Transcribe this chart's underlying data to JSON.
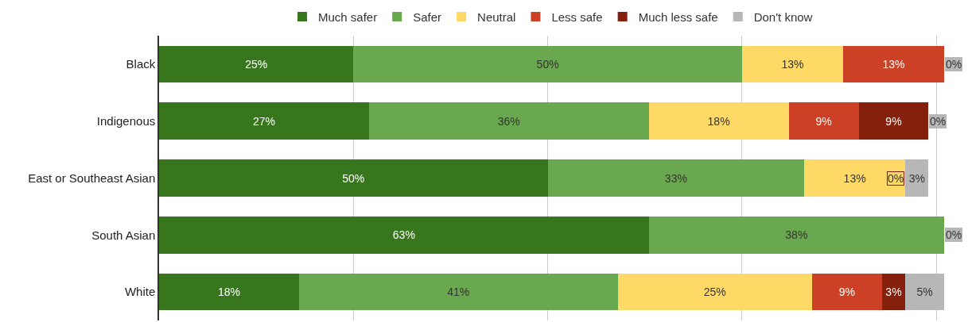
{
  "chart_data": {
    "type": "bar",
    "orientation": "horizontal",
    "stacked": true,
    "categories": [
      "Black",
      "Indigenous",
      "East or Southeast Asian",
      "South Asian",
      "White"
    ],
    "series": [
      {
        "name": "Much safer",
        "color": "#38761d",
        "values": [
          25,
          27,
          50,
          63,
          18
        ],
        "value_labels": [
          "25%",
          "27%",
          "50%",
          "63%",
          "18%"
        ]
      },
      {
        "name": "Safer",
        "color": "#6aa84f",
        "values": [
          50,
          36,
          33,
          38,
          41
        ],
        "value_labels": [
          "50%",
          "36%",
          "33%",
          "38%",
          "41%"
        ]
      },
      {
        "name": "Neutral",
        "color": "#ffd966",
        "values": [
          13,
          18,
          13,
          null,
          25
        ],
        "value_labels": [
          "13%",
          "18%",
          "13%",
          null,
          "25%"
        ]
      },
      {
        "name": "Less safe",
        "color": "#cc4125",
        "values": [
          13,
          9,
          null,
          null,
          9
        ],
        "value_labels": [
          "13%",
          "9%",
          null,
          null,
          "9%"
        ]
      },
      {
        "name": "Much less safe",
        "color": "#85200c",
        "values": [
          null,
          9,
          0,
          null,
          3
        ],
        "value_labels": [
          null,
          "9%",
          "0%",
          null,
          "3%"
        ]
      },
      {
        "name": "Don't know",
        "color": "#b7b7b7",
        "values": [
          0,
          0,
          3,
          0,
          5
        ],
        "value_labels": [
          "0%",
          "0%",
          "3%",
          "0%",
          "5%"
        ]
      }
    ],
    "xlim": [
      0,
      101
    ],
    "xticks": [
      {
        "value": 0,
        "label": null
      },
      {
        "value": 25,
        "label": null
      },
      {
        "value": 50,
        "label": null
      },
      {
        "value": 75,
        "label": null
      },
      {
        "value": 100,
        "label": null
      }
    ],
    "tick_labels": "y",
    "grid": "x",
    "legend": "top"
  }
}
